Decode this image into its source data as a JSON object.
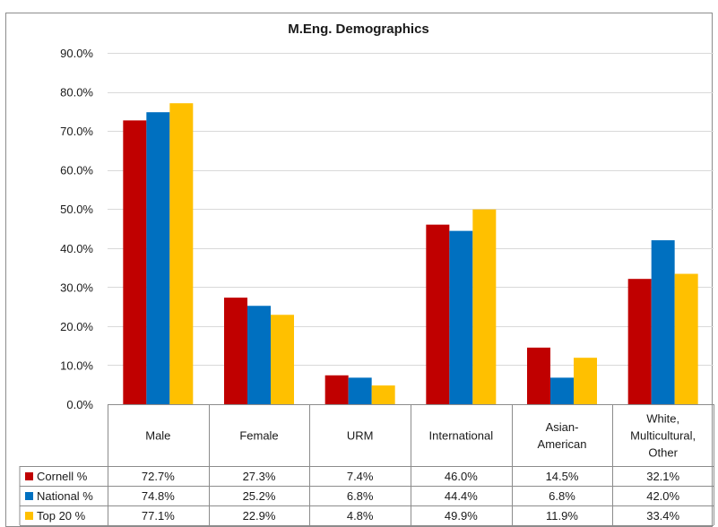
{
  "chart_data": {
    "type": "bar",
    "title": "M.Eng. Demographics",
    "categories": [
      "Male",
      "Female",
      "URM",
      "International",
      "Asian-American",
      "White, Multicultural, Other"
    ],
    "category_lines": [
      [
        "Male"
      ],
      [
        "Female"
      ],
      [
        "URM"
      ],
      [
        "International"
      ],
      [
        "Asian-",
        "American"
      ],
      [
        "White,",
        "Multicultural,",
        "Other"
      ]
    ],
    "series": [
      {
        "name": "Cornell %",
        "color": "#c00000",
        "values": [
          72.7,
          27.3,
          7.4,
          46.0,
          14.5,
          32.1
        ],
        "labels": [
          "72.7%",
          "27.3%",
          "7.4%",
          "46.0%",
          "14.5%",
          "32.1%"
        ]
      },
      {
        "name": "National %",
        "color": "#0070c0",
        "values": [
          74.8,
          25.2,
          6.8,
          44.4,
          6.8,
          42.0
        ],
        "labels": [
          "74.8%",
          "25.2%",
          "6.8%",
          "44.4%",
          "6.8%",
          "42.0%"
        ]
      },
      {
        "name": "Top 20 %",
        "color": "#ffc000",
        "values": [
          77.1,
          22.9,
          4.8,
          49.9,
          11.9,
          33.4
        ],
        "labels": [
          "77.1%",
          "22.9%",
          "4.8%",
          "49.9%",
          "11.9%",
          "33.4%"
        ]
      }
    ],
    "y_ticks": [
      0,
      10,
      20,
      30,
      40,
      50,
      60,
      70,
      80,
      90
    ],
    "y_tick_labels": [
      "0.0%",
      "10.0%",
      "20.0%",
      "30.0%",
      "40.0%",
      "50.0%",
      "60.0%",
      "70.0%",
      "80.0%",
      "90.0%"
    ],
    "ylim": [
      0,
      90
    ],
    "grid": true,
    "legend": "data-table"
  }
}
